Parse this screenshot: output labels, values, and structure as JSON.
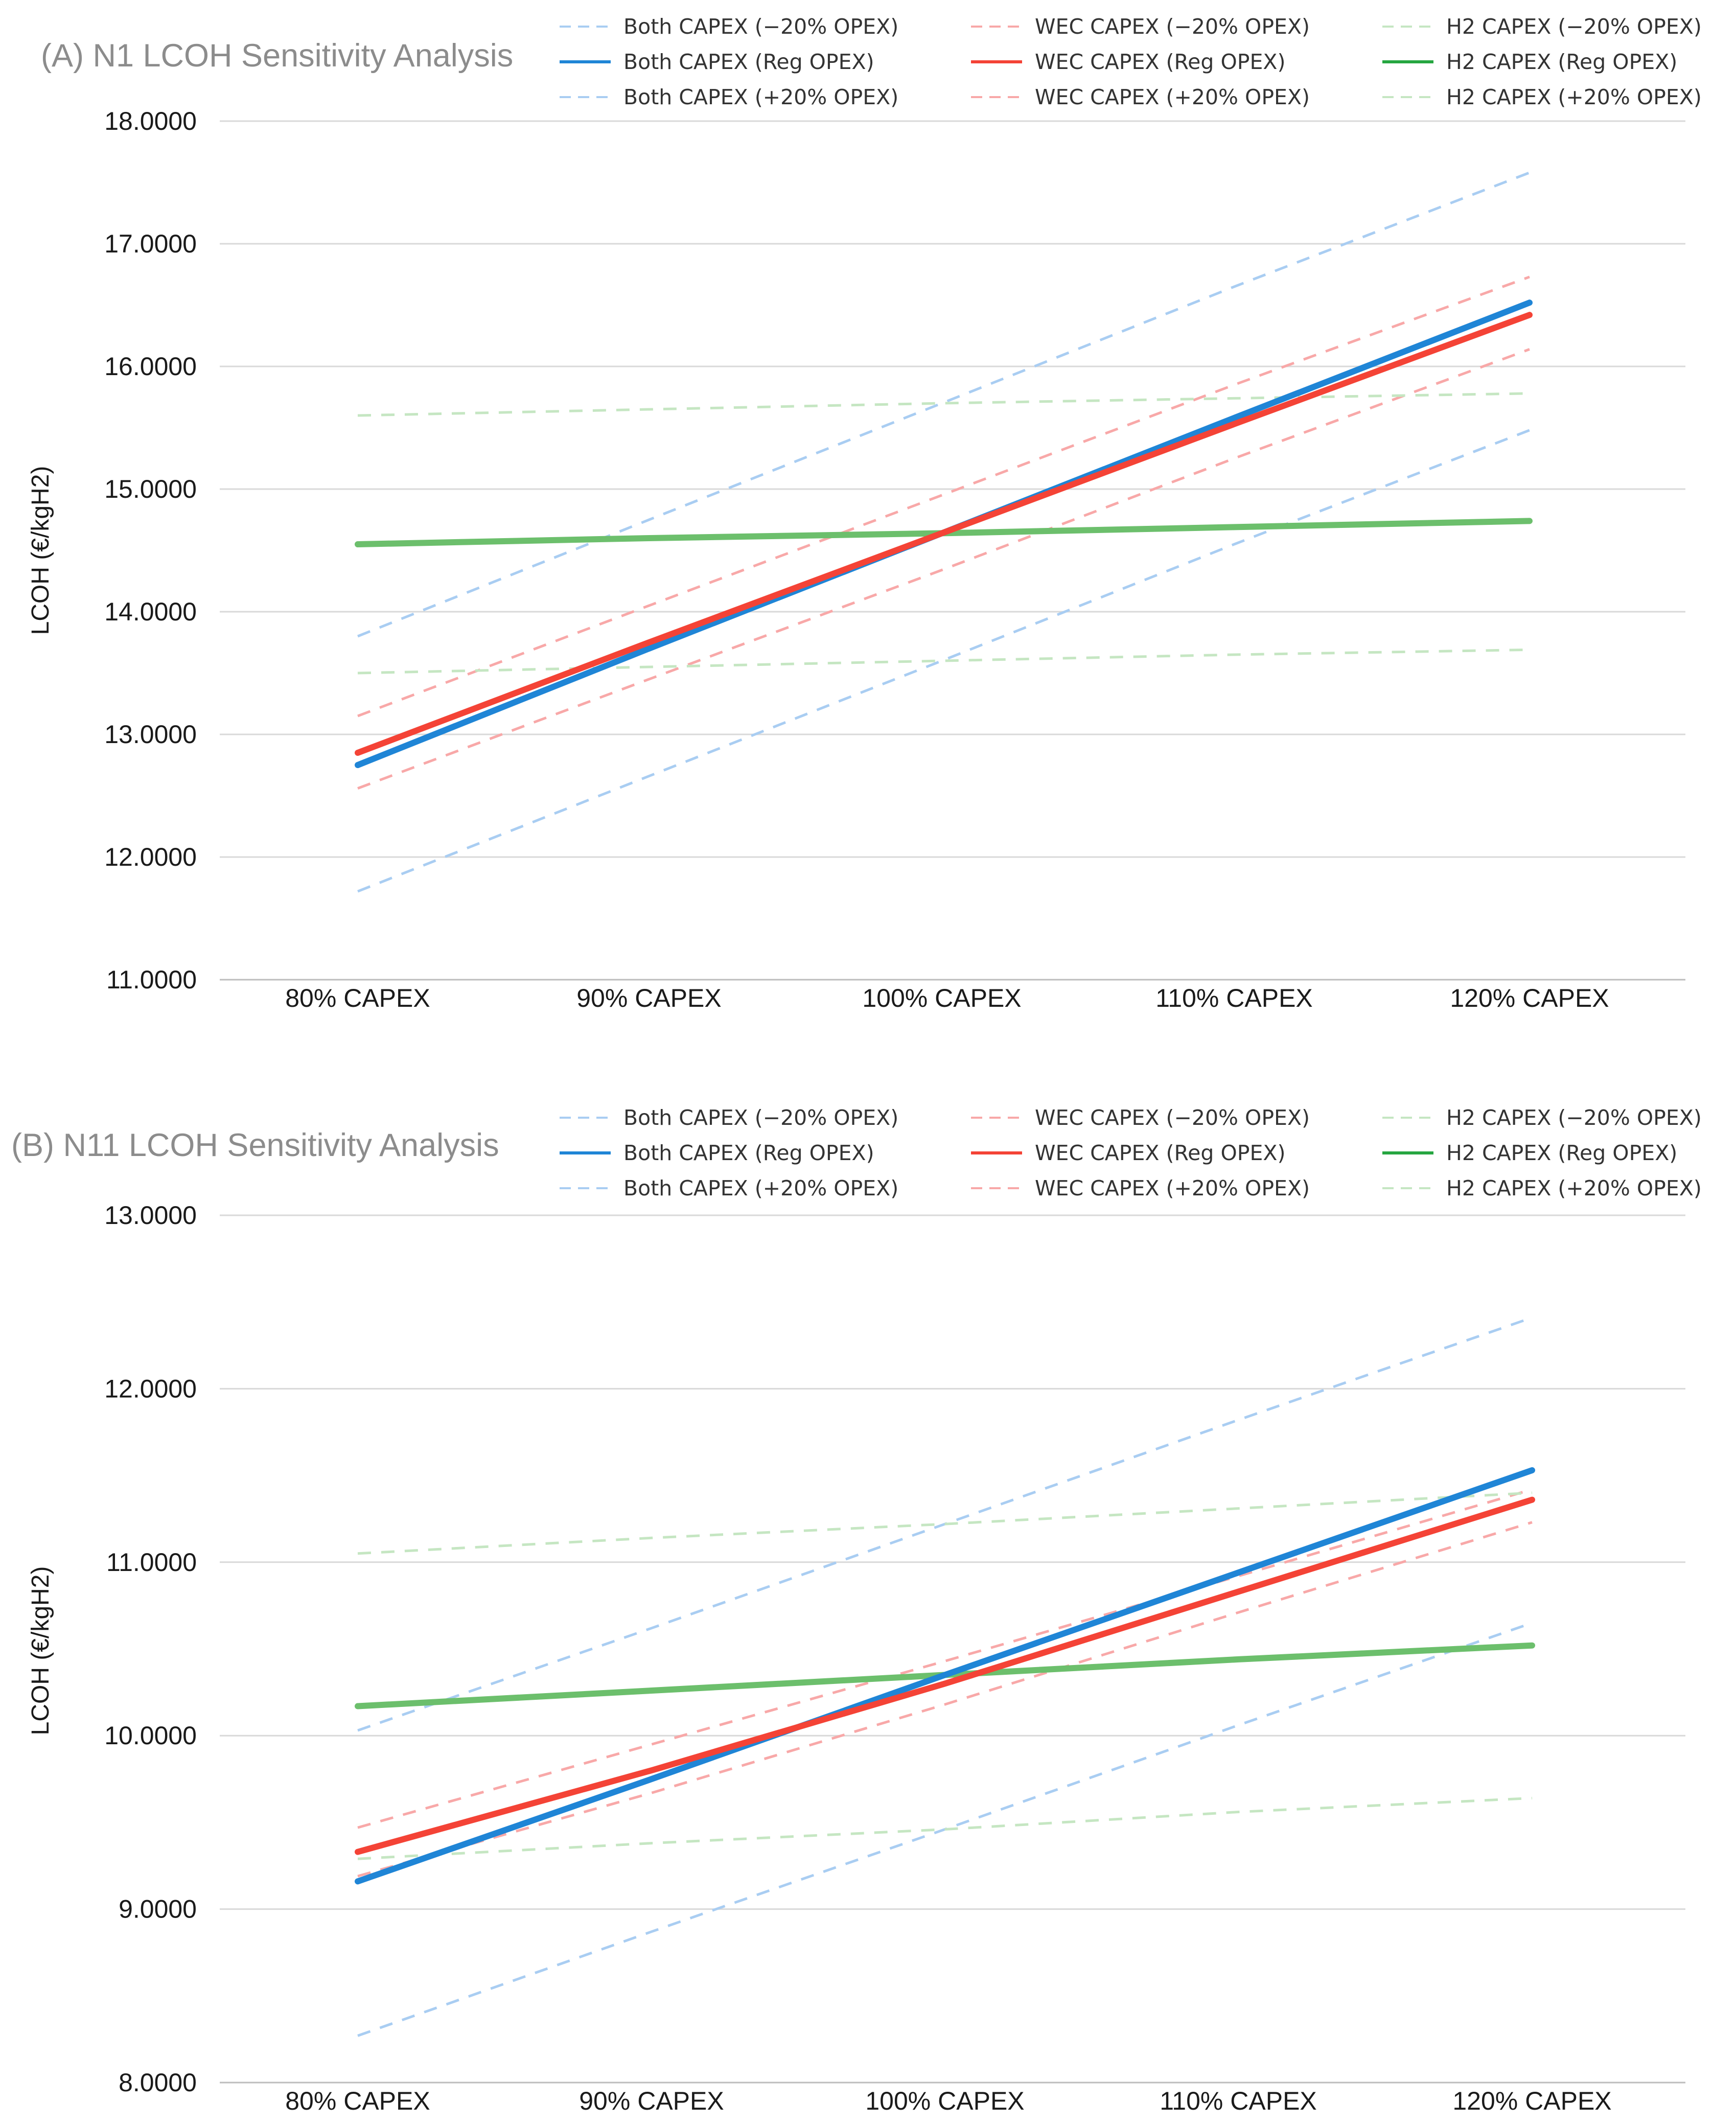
{
  "chart_data": [
    {
      "type": "line",
      "title": "(A) N1 LCOH Sensitivity Analysis",
      "xlabel": "",
      "ylabel": "LCOH (€/kgH2)",
      "categories": [
        "80% CAPEX",
        "90% CAPEX",
        "100% CAPEX",
        "110% CAPEX",
        "120% CAPEX"
      ],
      "ylim": [
        11,
        18
      ],
      "yticks": [
        "11.0000",
        "12.0000",
        "13.0000",
        "14.0000",
        "15.0000",
        "16.0000",
        "17.0000",
        "18.0000"
      ],
      "grid": true,
      "legend_position": "top-right",
      "series": [
        {
          "name": "Both CAPEX (−20% OPEX)",
          "group": "both",
          "style": "dashed",
          "values": [
            13.8,
            14.75,
            15.7,
            16.65,
            17.58
          ]
        },
        {
          "name": "Both CAPEX (Reg OPEX)",
          "group": "both",
          "style": "solid",
          "values": [
            12.75,
            13.7,
            14.64,
            15.58,
            16.52
          ]
        },
        {
          "name": "Both CAPEX (+20% OPEX)",
          "group": "both",
          "style": "dashed",
          "values": [
            11.72,
            12.66,
            13.6,
            14.55,
            15.48
          ]
        },
        {
          "name": "WEC CAPEX (−20% OPEX)",
          "group": "wec",
          "style": "dashed",
          "values": [
            13.15,
            14.05,
            14.95,
            15.85,
            16.73
          ]
        },
        {
          "name": "WEC CAPEX (Reg OPEX)",
          "group": "wec",
          "style": "solid",
          "values": [
            12.85,
            13.75,
            14.64,
            15.53,
            16.42
          ]
        },
        {
          "name": "WEC CAPEX (+20% OPEX)",
          "group": "wec",
          "style": "dashed",
          "values": [
            12.56,
            13.45,
            14.34,
            15.25,
            16.14
          ]
        },
        {
          "name": "H2 CAPEX (−20% OPEX)",
          "group": "h2",
          "style": "dashed",
          "values": [
            15.6,
            15.65,
            15.7,
            15.74,
            15.78
          ]
        },
        {
          "name": "H2 CAPEX (Reg OPEX)",
          "group": "h2",
          "style": "solid",
          "values": [
            14.55,
            14.6,
            14.64,
            14.69,
            14.74
          ]
        },
        {
          "name": "H2 CAPEX (+20% OPEX)",
          "group": "h2",
          "style": "dashed",
          "values": [
            13.5,
            13.55,
            13.6,
            13.65,
            13.69
          ]
        }
      ]
    },
    {
      "type": "line",
      "title": "(B) N11 LCOH Sensitivity Analysis",
      "xlabel": "",
      "ylabel": "LCOH (€/kgH2)",
      "categories": [
        "80% CAPEX",
        "90% CAPEX",
        "100% CAPEX",
        "110% CAPEX",
        "120% CAPEX"
      ],
      "ylim": [
        8,
        13
      ],
      "yticks": [
        "8.0000",
        "9.0000",
        "10.0000",
        "11.0000",
        "12.0000",
        "13.0000"
      ],
      "grid": true,
      "legend_position": "top-right",
      "series": [
        {
          "name": "Both CAPEX (−20% OPEX)",
          "group": "both",
          "style": "dashed",
          "values": [
            10.03,
            10.62,
            11.22,
            11.82,
            12.41
          ]
        },
        {
          "name": "Both CAPEX (Reg OPEX)",
          "group": "both",
          "style": "solid",
          "values": [
            9.16,
            9.75,
            10.35,
            10.94,
            11.53
          ]
        },
        {
          "name": "Both CAPEX (+20% OPEX)",
          "group": "both",
          "style": "dashed",
          "values": [
            8.27,
            8.87,
            9.46,
            10.06,
            10.65
          ]
        },
        {
          "name": "WEC CAPEX (−20% OPEX)",
          "group": "wec",
          "style": "dashed",
          "values": [
            9.47,
            9.95,
            10.43,
            10.92,
            11.42
          ]
        },
        {
          "name": "WEC CAPEX (Reg OPEX)",
          "group": "wec",
          "style": "solid",
          "values": [
            9.33,
            9.8,
            10.3,
            10.83,
            11.36
          ]
        },
        {
          "name": "WEC CAPEX (+20% OPEX)",
          "group": "wec",
          "style": "dashed",
          "values": [
            9.19,
            9.67,
            10.18,
            10.71,
            11.23
          ]
        },
        {
          "name": "H2 CAPEX (−20% OPEX)",
          "group": "h2",
          "style": "dashed",
          "values": [
            11.05,
            11.14,
            11.22,
            11.31,
            11.4
          ]
        },
        {
          "name": "H2 CAPEX (Reg OPEX)",
          "group": "h2",
          "style": "solid",
          "values": [
            10.17,
            10.26,
            10.35,
            10.44,
            10.52
          ]
        },
        {
          "name": "H2 CAPEX (+20% OPEX)",
          "group": "h2",
          "style": "dashed",
          "values": [
            9.29,
            9.38,
            9.46,
            9.56,
            9.64
          ]
        }
      ]
    }
  ],
  "colors": {
    "both_solid": "#1f85d6",
    "both_dashed": "#a9cdf2",
    "wec_solid": "#f44336",
    "wec_dashed": "#f8a8a8",
    "h2_solid": "#6cbf6c",
    "h2_dashed": "#c5e6c2",
    "h2_legend_solid": "#26a641"
  }
}
